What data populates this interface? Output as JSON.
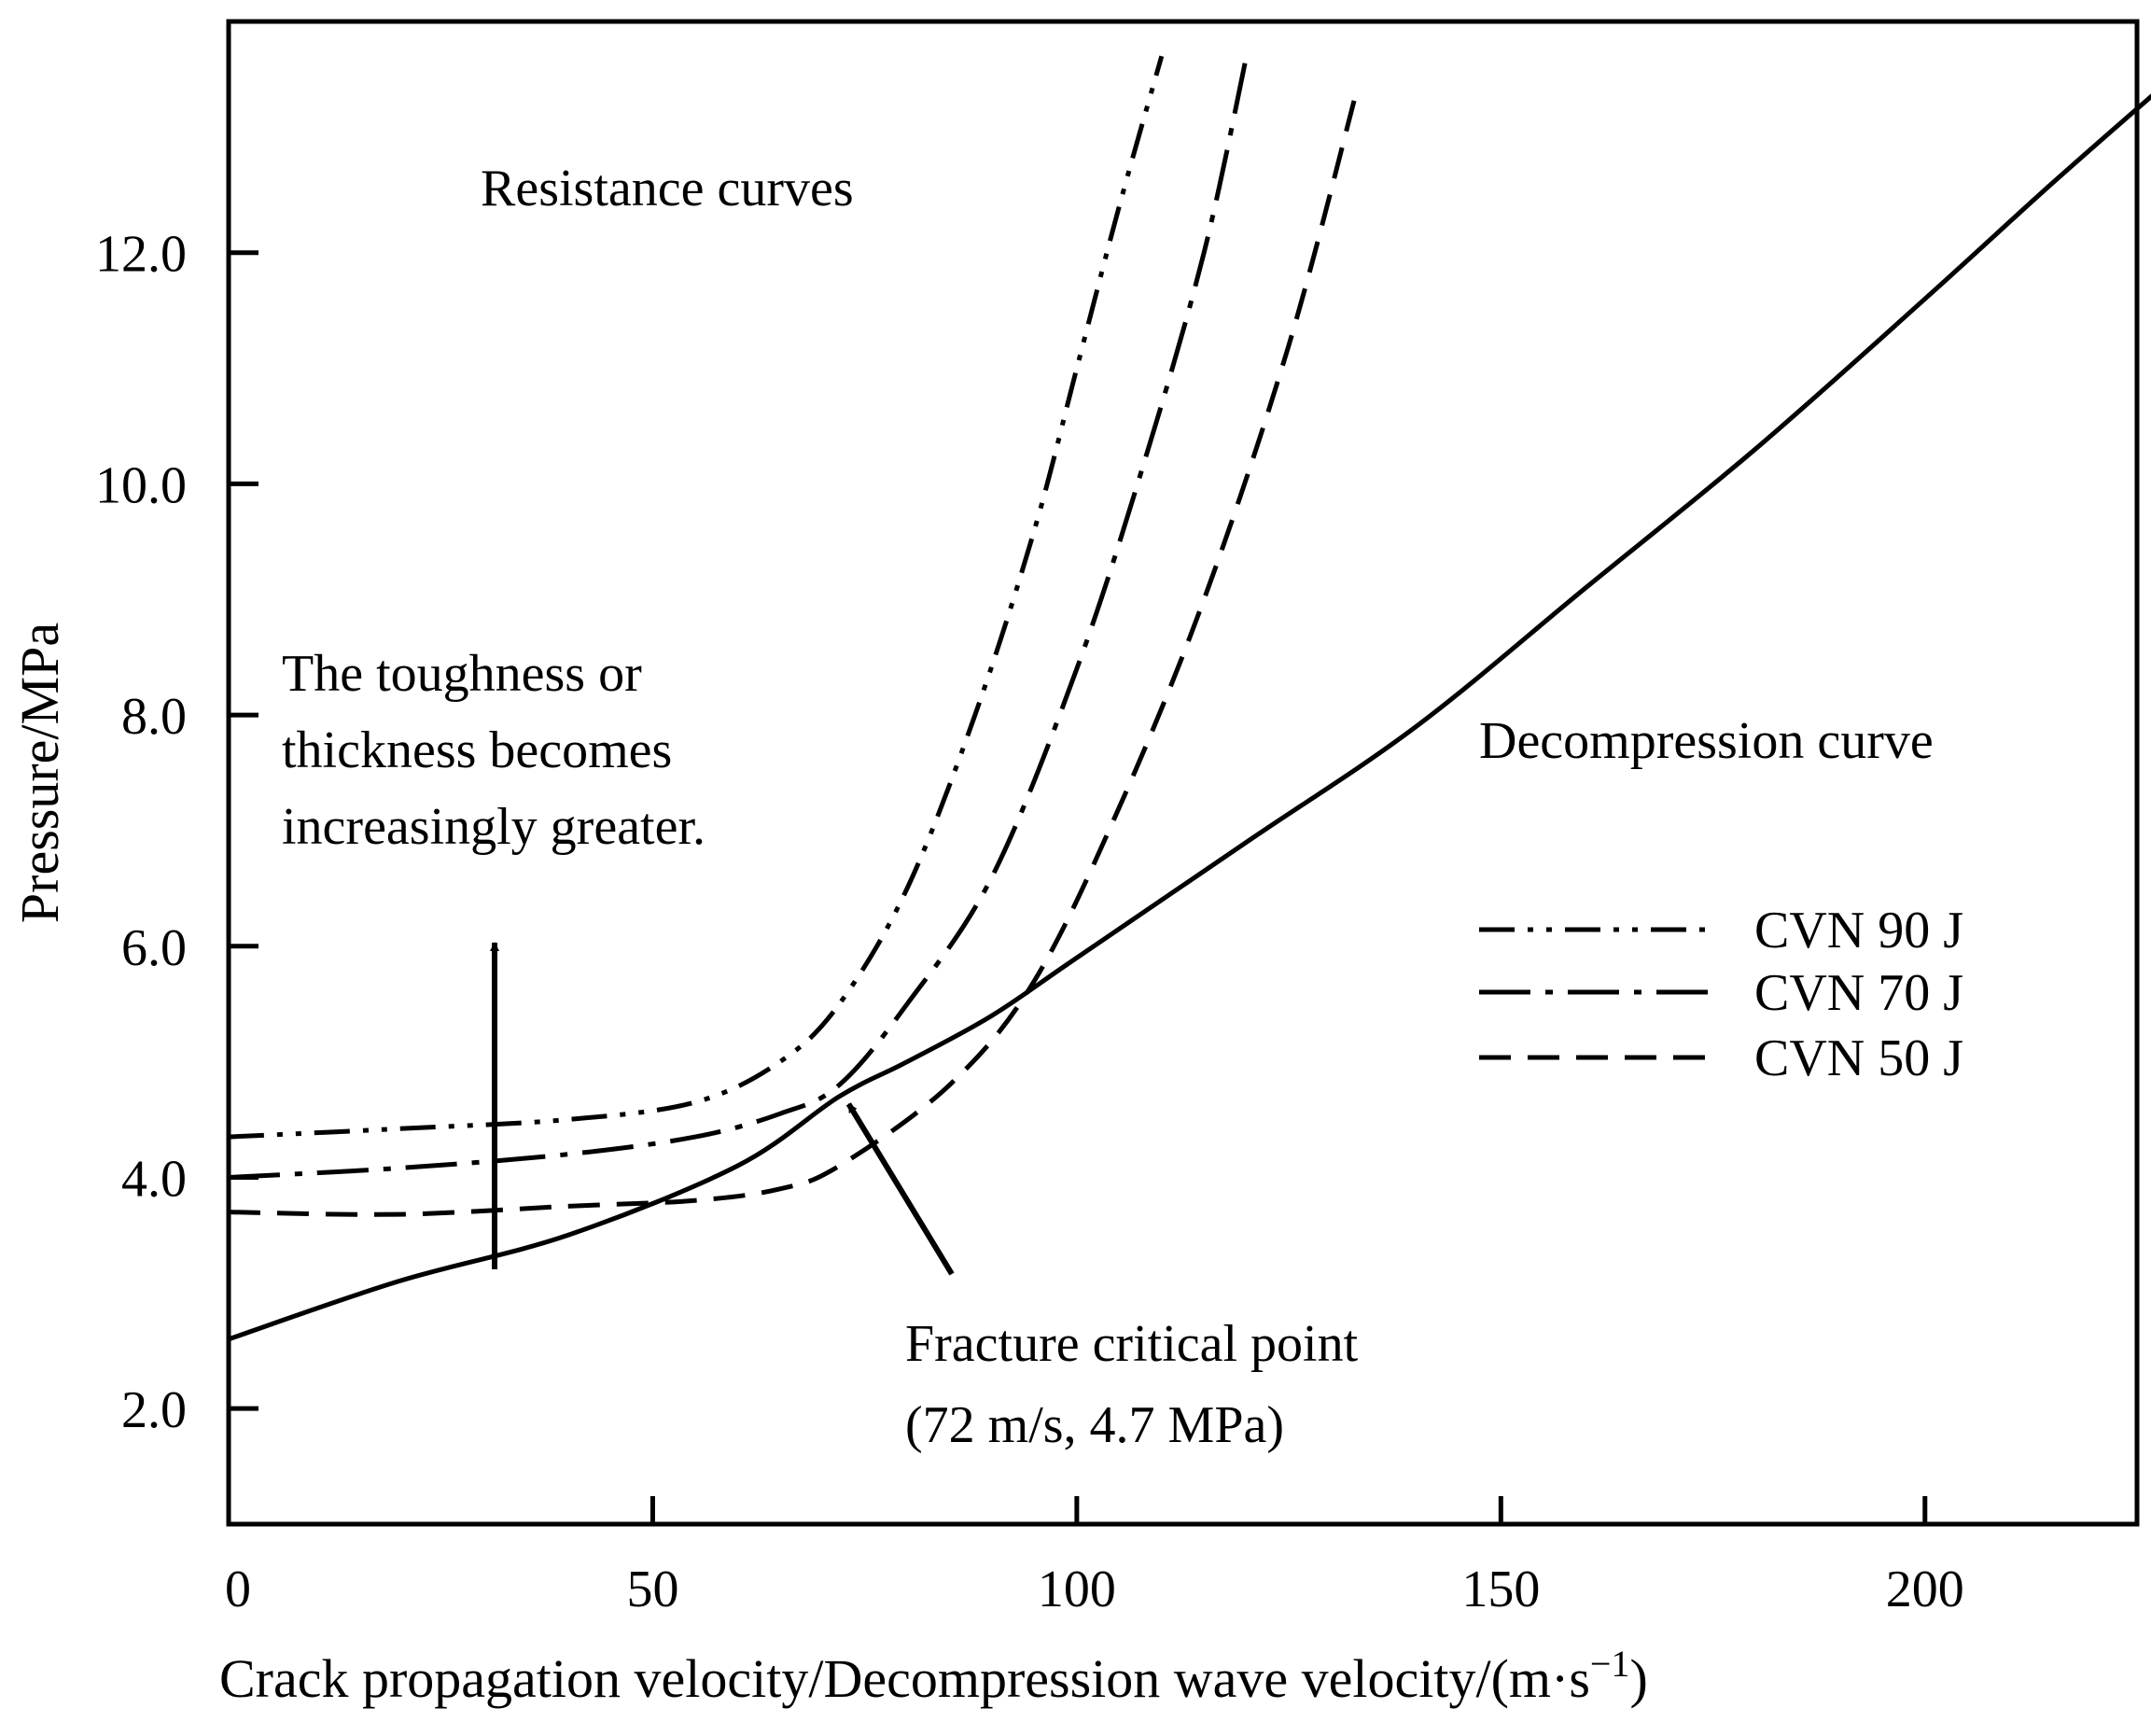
{
  "chart_data": {
    "type": "line",
    "title": "",
    "xlabel": "Crack propagation velocity/Decompression wave velocity/(m·s",
    "xlabel_sup": "−1",
    "xlabel_close": ")",
    "ylabel": "Pressure/MPa",
    "xlim": [
      0,
      225
    ],
    "ylim": [
      1.0,
      14.0
    ],
    "x_ticks": [
      0,
      50,
      100,
      150,
      200
    ],
    "x_tick_labels": [
      "0",
      "50",
      "100",
      "150",
      "200"
    ],
    "y_ticks": [
      2.0,
      4.0,
      6.0,
      8.0,
      10.0,
      12.0
    ],
    "y_tick_labels": [
      "2.0",
      "4.0",
      "6.0",
      "8.0",
      "10.0",
      "12.0"
    ],
    "series": [
      {
        "name": "Decompression curve",
        "style": "solid",
        "x": [
          0,
          20,
          40,
          60,
          72,
          80,
          90,
          100,
          120,
          140,
          160,
          180,
          200,
          215,
          229
        ],
        "y": [
          2.6,
          3.1,
          3.5,
          4.1,
          4.7,
          5.0,
          5.4,
          5.9,
          6.9,
          7.9,
          9.1,
          10.3,
          11.6,
          12.6,
          13.5
        ]
      },
      {
        "name": "CVN 90 J",
        "style": "dash-dot-dot",
        "x": [
          0,
          20,
          40,
          55,
          65,
          72,
          80,
          88,
          95,
          100,
          105,
          110
        ],
        "y": [
          4.35,
          4.42,
          4.5,
          4.65,
          5.0,
          5.5,
          6.5,
          8.0,
          9.6,
          11.0,
          12.4,
          13.7
        ]
      },
      {
        "name": "CVN 70 J",
        "style": "dash-dot",
        "x": [
          0,
          20,
          40,
          55,
          65,
          72,
          80,
          90,
          100,
          108,
          115,
          120
        ],
        "y": [
          4.0,
          4.08,
          4.2,
          4.35,
          4.55,
          4.8,
          5.5,
          6.6,
          8.4,
          10.2,
          12.0,
          13.7
        ]
      },
      {
        "name": "CVN 50 J",
        "style": "dashed",
        "x": [
          0,
          20,
          40,
          55,
          65,
          72,
          85,
          95,
          105,
          115,
          125,
          133
        ],
        "y": [
          3.7,
          3.68,
          3.75,
          3.8,
          3.9,
          4.1,
          4.8,
          5.7,
          7.2,
          9.0,
          11.2,
          13.4
        ]
      }
    ],
    "legend": {
      "placement": "right",
      "entries": [
        "CVN 90 J",
        "CVN 70 J",
        "CVN 50 J"
      ]
    },
    "annotations": {
      "resistance_curves": "Resistance curves",
      "toughness_line1": "The toughness or",
      "toughness_line2": "thickness becomes",
      "toughness_line3": "increasingly greater.",
      "decompression_curve": "Decompression curve",
      "critical_point_line1": "Fracture critical point",
      "critical_point_line2": "(72 m/s, 4.7 MPa)",
      "critical_point": {
        "x": 72,
        "y": 4.7
      }
    }
  }
}
